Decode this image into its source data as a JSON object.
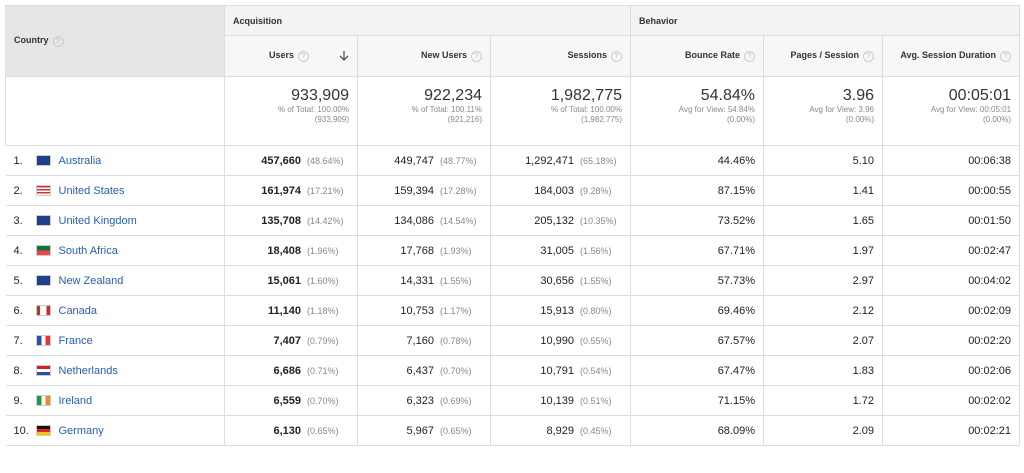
{
  "header": {
    "dimension": "Country",
    "help": "?",
    "groups": [
      "Acquisition",
      "Behavior"
    ],
    "columns": [
      "Users",
      "New Users",
      "Sessions",
      "Bounce Rate",
      "Pages / Session",
      "Avg. Session Duration"
    ]
  },
  "totals": [
    {
      "value": "933,909",
      "note": "% of Total: 100.00%",
      "detail": "(933,909)"
    },
    {
      "value": "922,234",
      "note": "% of Total: 100.11%",
      "detail": "(921,216)"
    },
    {
      "value": "1,982,775",
      "note": "% of Total: 100.00%",
      "detail": "(1,982,775)"
    },
    {
      "value": "54.84%",
      "note": "Avg for View: 54.84%",
      "detail": "(0.00%)"
    },
    {
      "value": "3.96",
      "note": "Avg for View: 3.96",
      "detail": "(0.00%)"
    },
    {
      "value": "00:05:01",
      "note": "Avg for View: 00:05:01",
      "detail": "(0.00%)"
    }
  ],
  "rows": [
    {
      "rank": "1.",
      "country": "Australia",
      "cells": [
        [
          "457,660",
          "(48.64%)"
        ],
        [
          "449,747",
          "(48.77%)"
        ],
        [
          "1,292,471",
          "(65.18%)"
        ],
        [
          "44.46%"
        ],
        [
          "5.10"
        ],
        [
          "00:06:38"
        ]
      ]
    },
    {
      "rank": "2.",
      "country": "United States",
      "cells": [
        [
          "161,974",
          "(17.21%)"
        ],
        [
          "159,394",
          "(17.28%)"
        ],
        [
          "184,003",
          "(9.28%)"
        ],
        [
          "87.15%"
        ],
        [
          "1.41"
        ],
        [
          "00:00:55"
        ]
      ]
    },
    {
      "rank": "3.",
      "country": "United Kingdom",
      "cells": [
        [
          "135,708",
          "(14.42%)"
        ],
        [
          "134,086",
          "(14.54%)"
        ],
        [
          "205,132",
          "(10.35%)"
        ],
        [
          "73.52%"
        ],
        [
          "1.65"
        ],
        [
          "00:01:50"
        ]
      ]
    },
    {
      "rank": "4.",
      "country": "South Africa",
      "cells": [
        [
          "18,408",
          "(1.96%)"
        ],
        [
          "17,768",
          "(1.93%)"
        ],
        [
          "31,005",
          "(1.56%)"
        ],
        [
          "67.71%"
        ],
        [
          "1.97"
        ],
        [
          "00:02:47"
        ]
      ]
    },
    {
      "rank": "5.",
      "country": "New Zealand",
      "cells": [
        [
          "15,061",
          "(1.60%)"
        ],
        [
          "14,331",
          "(1.55%)"
        ],
        [
          "30,656",
          "(1.55%)"
        ],
        [
          "57.73%"
        ],
        [
          "2.97"
        ],
        [
          "00:04:02"
        ]
      ]
    },
    {
      "rank": "6.",
      "country": "Canada",
      "cells": [
        [
          "11,140",
          "(1.18%)"
        ],
        [
          "10,753",
          "(1.17%)"
        ],
        [
          "15,913",
          "(0.80%)"
        ],
        [
          "69.46%"
        ],
        [
          "2.12"
        ],
        [
          "00:02:09"
        ]
      ]
    },
    {
      "rank": "7.",
      "country": "France",
      "cells": [
        [
          "7,407",
          "(0.79%)"
        ],
        [
          "7,160",
          "(0.78%)"
        ],
        [
          "10,990",
          "(0.55%)"
        ],
        [
          "67.57%"
        ],
        [
          "2.07"
        ],
        [
          "00:02:20"
        ]
      ]
    },
    {
      "rank": "8.",
      "country": "Netherlands",
      "cells": [
        [
          "6,686",
          "(0.71%)"
        ],
        [
          "6,437",
          "(0.70%)"
        ],
        [
          "10,791",
          "(0.54%)"
        ],
        [
          "67.47%"
        ],
        [
          "1.83"
        ],
        [
          "00:02:06"
        ]
      ]
    },
    {
      "rank": "9.",
      "country": "Ireland",
      "cells": [
        [
          "6,559",
          "(0.70%)"
        ],
        [
          "6,323",
          "(0.69%)"
        ],
        [
          "10,139",
          "(0.51%)"
        ],
        [
          "71.15%"
        ],
        [
          "1.72"
        ],
        [
          "00:02:02"
        ]
      ]
    },
    {
      "rank": "10.",
      "country": "Germany",
      "cells": [
        [
          "6,130",
          "(0.65%)"
        ],
        [
          "5,967",
          "(0.65%)"
        ],
        [
          "8,929",
          "(0.45%)"
        ],
        [
          "68.09%"
        ],
        [
          "2.09"
        ],
        [
          "00:02:21"
        ]
      ]
    }
  ]
}
